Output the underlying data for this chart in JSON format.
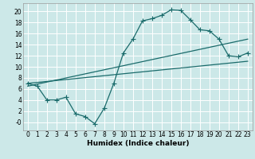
{
  "xlabel": "Humidex (Indice chaleur)",
  "bg_color": "#cce8e8",
  "grid_color": "#ffffff",
  "line_color": "#1a6b6b",
  "xlim": [
    -0.5,
    23.5
  ],
  "ylim": [
    -1.5,
    21.5
  ],
  "xticks": [
    0,
    1,
    2,
    3,
    4,
    5,
    6,
    7,
    8,
    9,
    10,
    11,
    12,
    13,
    14,
    15,
    16,
    17,
    18,
    19,
    20,
    21,
    22,
    23
  ],
  "yticks": [
    0,
    2,
    4,
    6,
    8,
    10,
    12,
    14,
    16,
    18,
    20
  ],
  "ytick_labels": [
    "-0",
    "2",
    "4",
    "6",
    "8",
    "10",
    "12",
    "14",
    "16",
    "18",
    "20"
  ],
  "line1_x": [
    0,
    1,
    2,
    3,
    4,
    5,
    6,
    7,
    8,
    9,
    10,
    11,
    12,
    13,
    14,
    15,
    16,
    17,
    18,
    19,
    20,
    21,
    22,
    23
  ],
  "line1_y": [
    7.0,
    6.5,
    4.0,
    4.0,
    4.5,
    1.5,
    1.0,
    -0.3,
    2.5,
    7.0,
    12.5,
    15.0,
    18.3,
    18.7,
    19.3,
    20.3,
    20.2,
    18.5,
    16.7,
    16.5,
    15.0,
    12.0,
    11.8,
    12.5
  ],
  "line2_x": [
    0,
    23
  ],
  "line2_y": [
    7.0,
    11.0
  ],
  "line3_x": [
    0,
    23
  ],
  "line3_y": [
    6.5,
    15.0
  ],
  "marker": "+",
  "markersize": 4,
  "linewidth": 0.9
}
